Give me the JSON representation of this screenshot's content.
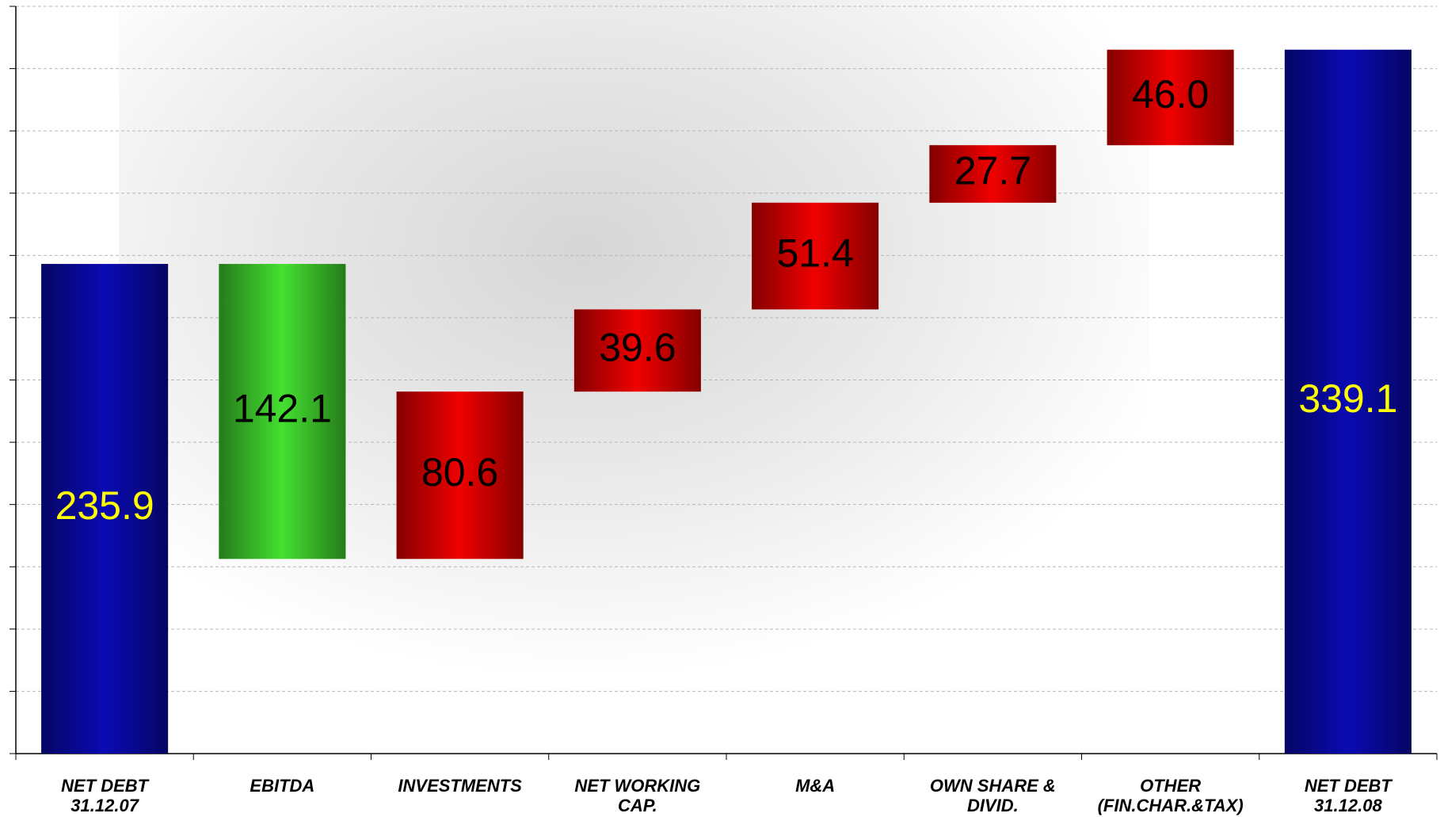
{
  "chart_data": {
    "type": "waterfall",
    "categories": [
      "NET DEBT 31.12.07",
      "EBITDA",
      "INVESTMENTS",
      "NET WORKING CAP.",
      "M&A",
      "OWN SHARE & DIVID.",
      "OTHER (FIN.CHAR.&TAX)",
      "NET DEBT 31.12.08"
    ],
    "values": [
      235.9,
      -142.1,
      80.6,
      39.6,
      51.4,
      27.7,
      46.0,
      339.1
    ],
    "value_labels": [
      "235.9",
      "142.1",
      "80.6",
      "39.6",
      "51.4",
      "27.7",
      "46.0",
      "339.1"
    ],
    "measure": [
      "absolute",
      "relative",
      "relative",
      "relative",
      "relative",
      "relative",
      "relative",
      "absolute"
    ],
    "colors": [
      "#0a0ab4",
      "#44e030",
      "#f00000",
      "#f00000",
      "#f00000",
      "#f00000",
      "#f00000",
      "#0a0ab4"
    ],
    "label_colors": [
      "#ffff00",
      "#000000",
      "#000000",
      "#000000",
      "#000000",
      "#000000",
      "#000000",
      "#ffff00"
    ],
    "ylim": [
      0,
      360
    ],
    "yticks": [
      0,
      30,
      60,
      90,
      120,
      150,
      180,
      210,
      240,
      270,
      300,
      330,
      360
    ],
    "grid": true
  }
}
